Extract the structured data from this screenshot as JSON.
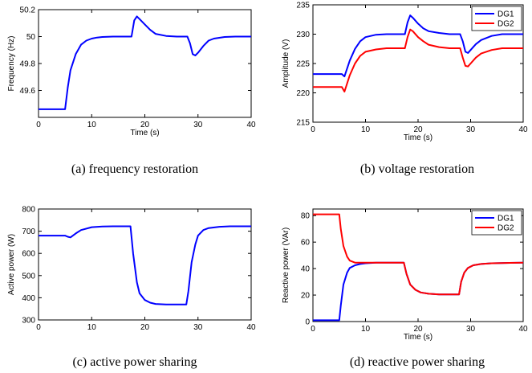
{
  "chart_data": [
    {
      "type": "line",
      "caption": "(a) frequency restoration",
      "xlabel": "Time (s)",
      "ylabel": "Frequency (Hz)",
      "xlim": [
        0,
        40
      ],
      "ylim": [
        49.4,
        50.2
      ],
      "xticks": [
        0,
        10,
        20,
        30,
        40
      ],
      "yticks": [
        49.6,
        49.8,
        50,
        50.2
      ],
      "grid": false,
      "legend": null,
      "series": [
        {
          "color": "#0000ff",
          "x": [
            0,
            5,
            5.5,
            6,
            7,
            8,
            9,
            10,
            11,
            12,
            14,
            16,
            17.5,
            18,
            18.5,
            19,
            20,
            21,
            22,
            24,
            26,
            28,
            28.5,
            29,
            29.5,
            30,
            31,
            32,
            33,
            35,
            37,
            40
          ],
          "y": [
            49.46,
            49.46,
            49.62,
            49.75,
            49.87,
            49.94,
            49.97,
            49.985,
            49.993,
            49.997,
            50,
            50,
            50,
            50.12,
            50.15,
            50.13,
            50.09,
            50.05,
            50.02,
            50.005,
            50,
            50,
            49.95,
            49.87,
            49.86,
            49.88,
            49.93,
            49.97,
            49.985,
            49.997,
            50,
            50
          ]
        }
      ]
    },
    {
      "type": "line",
      "caption": "(b) voltage restoration",
      "xlabel": "Time (s)",
      "ylabel": "Amplitude (V)",
      "xlim": [
        0,
        40
      ],
      "ylim": [
        215,
        235
      ],
      "xticks": [
        0,
        10,
        20,
        30,
        40
      ],
      "yticks": [
        215,
        220,
        225,
        230,
        235
      ],
      "grid": false,
      "legend": "top-right",
      "series": [
        {
          "name": "DG1",
          "color": "#0000ff",
          "x": [
            0,
            5,
            5.5,
            6,
            7,
            8,
            9,
            10,
            12,
            14,
            16,
            17.5,
            18,
            18.5,
            19,
            20,
            21,
            22,
            24,
            26,
            28,
            28.5,
            29,
            29.5,
            30,
            31,
            32,
            34,
            36,
            40
          ],
          "y": [
            223.2,
            223.2,
            223.2,
            222.8,
            225.5,
            227.5,
            228.8,
            229.5,
            229.9,
            230,
            230,
            230,
            232,
            233.2,
            232.8,
            231.8,
            231,
            230.5,
            230.2,
            230,
            230,
            228.8,
            227,
            226.8,
            227.3,
            228.3,
            229,
            229.7,
            230,
            230
          ]
        },
        {
          "name": "DG2",
          "color": "#ff0000",
          "x": [
            0,
            5,
            5.5,
            6,
            7,
            8,
            9,
            10,
            12,
            14,
            16,
            17.5,
            18,
            18.5,
            19,
            20,
            21,
            22,
            24,
            26,
            28,
            28.5,
            29,
            29.5,
            30,
            31,
            32,
            34,
            36,
            40
          ],
          "y": [
            221,
            221,
            221,
            220.2,
            223,
            225,
            226.3,
            227,
            227.4,
            227.6,
            227.6,
            227.6,
            229.5,
            230.8,
            230.5,
            229.5,
            228.8,
            228.2,
            227.8,
            227.6,
            227.6,
            226,
            224.6,
            224.5,
            225,
            226,
            226.7,
            227.3,
            227.6,
            227.6
          ]
        }
      ],
      "legend_labels": [
        "DG1",
        "DG2"
      ]
    },
    {
      "type": "line",
      "caption": "(c) active power sharing",
      "xlabel": "",
      "ylabel": "Active power (W)",
      "xlim": [
        0,
        40
      ],
      "ylim": [
        300,
        800
      ],
      "xticks": [
        0,
        10,
        20,
        30,
        40
      ],
      "yticks": [
        300,
        400,
        500,
        600,
        700,
        800
      ],
      "grid": false,
      "legend": null,
      "series": [
        {
          "color": "#0000ff",
          "x": [
            0,
            5,
            5.5,
            6,
            7,
            8,
            10,
            12,
            14,
            16,
            17.3,
            17.8,
            18.5,
            19,
            20,
            21,
            22,
            24,
            26,
            27.8,
            28.2,
            28.8,
            29.5,
            30,
            31,
            32,
            34,
            36,
            40
          ],
          "y": [
            680,
            680,
            675,
            672,
            690,
            705,
            718,
            721,
            722,
            722,
            722,
            600,
            470,
            420,
            390,
            378,
            372,
            370,
            370,
            370,
            430,
            560,
            640,
            680,
            705,
            714,
            720,
            722,
            722
          ]
        }
      ]
    },
    {
      "type": "line",
      "caption": "(d) reactive power sharing",
      "xlabel": "Time (s)",
      "ylabel": "Reactive power (VAr)",
      "xlim": [
        0,
        40
      ],
      "ylim": [
        0,
        85
      ],
      "xticks": [
        0,
        10,
        20,
        30,
        40
      ],
      "yticks": [
        0,
        20,
        40,
        60,
        80
      ],
      "grid": false,
      "legend": "top-right",
      "series": [
        {
          "name": "DG1",
          "color": "#0000ff",
          "x": [
            0,
            5,
            5.3,
            5.8,
            6.5,
            7,
            8,
            9,
            10,
            12,
            14,
            17.3,
            17.8,
            18.5,
            19.5,
            20.5,
            22,
            24,
            26,
            27.8,
            28.2,
            28.8,
            29.5,
            30.5,
            32,
            34,
            40
          ],
          "y": [
            1,
            1,
            12,
            28,
            37,
            40.5,
            42.5,
            43.5,
            44,
            44.5,
            44.5,
            44.5,
            36,
            28,
            24,
            22,
            21,
            20.5,
            20.5,
            20.5,
            30,
            37,
            40.5,
            42.5,
            43.5,
            44,
            44.5
          ]
        },
        {
          "name": "DG2",
          "color": "#ff0000",
          "x": [
            0,
            5,
            5.3,
            5.8,
            6.5,
            7,
            8,
            9,
            10,
            12,
            14,
            17.3,
            17.8,
            18.5,
            19.5,
            20.5,
            22,
            24,
            26,
            27.8,
            28.2,
            28.8,
            29.5,
            30.5,
            32,
            34,
            40
          ],
          "y": [
            81,
            81,
            70,
            57,
            49,
            46,
            44.5,
            44.5,
            44.5,
            44.5,
            44.5,
            44.5,
            36,
            28,
            24,
            22,
            21,
            20.5,
            20.5,
            20.5,
            30,
            37,
            40.5,
            42.5,
            43.5,
            44,
            44.5
          ]
        }
      ],
      "legend_labels": [
        "DG1",
        "DG2"
      ]
    }
  ]
}
